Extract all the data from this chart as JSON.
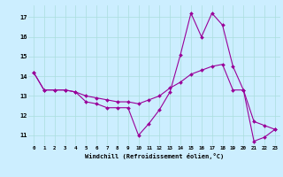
{
  "xlabel": "Windchill (Refroidissement éolien,°C)",
  "background_color": "#cceeff",
  "grid_color": "#aadddd",
  "line_color": "#990099",
  "xlim": [
    -0.5,
    23.5
  ],
  "ylim": [
    10.5,
    17.6
  ],
  "yticks": [
    11,
    12,
    13,
    14,
    15,
    16,
    17
  ],
  "xticks": [
    0,
    1,
    2,
    3,
    4,
    5,
    6,
    7,
    8,
    9,
    10,
    11,
    12,
    13,
    14,
    15,
    16,
    17,
    18,
    19,
    20,
    21,
    22,
    23
  ],
  "series": [
    [
      14.2,
      13.3,
      13.3,
      13.3,
      13.2,
      12.7,
      12.6,
      12.4,
      12.4,
      12.4,
      11.0,
      11.6,
      12.3,
      13.2,
      15.1,
      17.2,
      16.0,
      17.2,
      16.6,
      14.5,
      13.3,
      10.7,
      10.9,
      11.3
    ],
    [
      14.2,
      13.3,
      13.3,
      13.3,
      13.2,
      13.0,
      12.9,
      12.8,
      12.7,
      12.7,
      12.6,
      12.8,
      13.0,
      13.4,
      13.7,
      14.1,
      14.3,
      14.5,
      14.6,
      13.3,
      13.3,
      11.7,
      11.5,
      11.3
    ]
  ]
}
